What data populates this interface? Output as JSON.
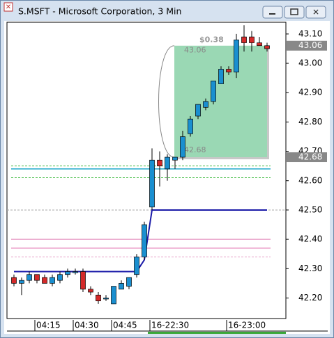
{
  "chart_data": {
    "type": "candlestick",
    "title": "S.MSFT - Microsoft Corporation, 3 Min",
    "categories": [
      null,
      null,
      null,
      "04:15",
      null,
      null,
      null,
      null,
      "04:30",
      null,
      null,
      null,
      null,
      "04:45",
      null,
      null,
      null,
      null,
      "16-22:30",
      null,
      null,
      null,
      null,
      null,
      null,
      null,
      null,
      null,
      "16-23:00",
      null,
      null,
      null,
      null,
      null
    ],
    "open": [
      42.27,
      42.25,
      42.26,
      42.28,
      42.27,
      42.25,
      42.26,
      42.28,
      42.29,
      42.29,
      42.23,
      42.21,
      42.2,
      42.18,
      42.23,
      42.24,
      42.28,
      42.34,
      42.51,
      42.67,
      42.64,
      42.67,
      42.68,
      42.76,
      42.82,
      42.85,
      42.87,
      42.93,
      42.98,
      42.97,
      43.09,
      43.09,
      43.07,
      43.06
    ],
    "high": [
      42.28,
      42.27,
      42.29,
      42.28,
      42.28,
      42.28,
      42.29,
      42.3,
      42.3,
      42.3,
      42.24,
      42.22,
      42.21,
      42.24,
      42.26,
      42.27,
      42.35,
      42.46,
      42.71,
      42.7,
      42.69,
      42.68,
      42.77,
      42.82,
      42.86,
      42.88,
      42.94,
      42.99,
      42.99,
      43.1,
      43.13,
      43.11,
      43.09,
      43.07
    ],
    "low": [
      42.24,
      42.21,
      42.25,
      42.25,
      42.25,
      42.24,
      42.25,
      42.27,
      42.28,
      42.22,
      42.21,
      42.18,
      42.19,
      42.18,
      42.23,
      42.23,
      42.27,
      42.33,
      42.5,
      42.58,
      42.6,
      42.64,
      42.67,
      42.75,
      42.81,
      42.84,
      42.86,
      42.93,
      42.96,
      42.95,
      43.04,
      43.04,
      43.06,
      43.04
    ],
    "close": [
      42.25,
      42.26,
      42.28,
      42.26,
      42.25,
      42.27,
      42.28,
      42.29,
      42.29,
      42.23,
      42.22,
      42.19,
      42.2,
      42.24,
      42.25,
      42.27,
      42.34,
      42.45,
      42.67,
      42.65,
      42.68,
      42.68,
      42.75,
      42.81,
      42.86,
      42.87,
      42.94,
      42.98,
      42.97,
      43.08,
      43.07,
      43.07,
      43.06,
      43.05
    ],
    "up_color": "#1a8fd0",
    "down_color": "#d42a2a",
    "trend_line": {
      "color": "#1a1aa8",
      "values": [
        42.29,
        42.29,
        42.29,
        42.29,
        42.29,
        42.29,
        42.29,
        42.29,
        42.29,
        42.29,
        42.29,
        42.29,
        42.29,
        42.29,
        42.29,
        42.29,
        42.29,
        42.33,
        42.5,
        42.5,
        42.5,
        42.5,
        42.5,
        42.5,
        42.5,
        42.5,
        42.5,
        42.5,
        42.5,
        42.5,
        42.5,
        42.5,
        42.5,
        42.5
      ]
    },
    "levels": [
      {
        "value": 42.65,
        "color": "#4cbf4c",
        "dashed": true
      },
      {
        "value": 42.64,
        "color": "#22aacc",
        "dashed": false
      },
      {
        "value": 42.61,
        "color": "#4cbf4c",
        "dashed": true
      },
      {
        "value": 42.5,
        "color": "#aaaaaa",
        "dashed": true
      },
      {
        "value": 42.4,
        "color": "#e8a0c8",
        "dashed": false
      },
      {
        "value": 42.37,
        "color": "#e890c0",
        "dashed": false
      },
      {
        "value": 42.34,
        "color": "#e8a0c8",
        "dashed": true
      }
    ],
    "measure": {
      "from": 42.68,
      "to": 43.06,
      "change": 0.38,
      "change_label": "$0.38",
      "from_index": 21,
      "to_index": 33,
      "color": "#9ad8b4"
    },
    "price_markers": [
      43.06,
      42.68
    ],
    "ylim": [
      42.13,
      43.14
    ],
    "yticks": [
      {
        "value": 42.2,
        "label": "42.20"
      },
      {
        "value": 42.3,
        "label": "42.30"
      },
      {
        "value": 42.4,
        "label": "42.40"
      },
      {
        "value": 42.5,
        "label": "42.50"
      },
      {
        "value": 42.6,
        "label": "42.60"
      },
      {
        "value": 42.7,
        "label": "42.70"
      },
      {
        "value": 42.8,
        "label": "42.80"
      },
      {
        "value": 42.9,
        "label": "42.90"
      },
      {
        "value": 43.0,
        "label": "43.00"
      },
      {
        "value": 43.1,
        "label": "43.10"
      }
    ]
  }
}
